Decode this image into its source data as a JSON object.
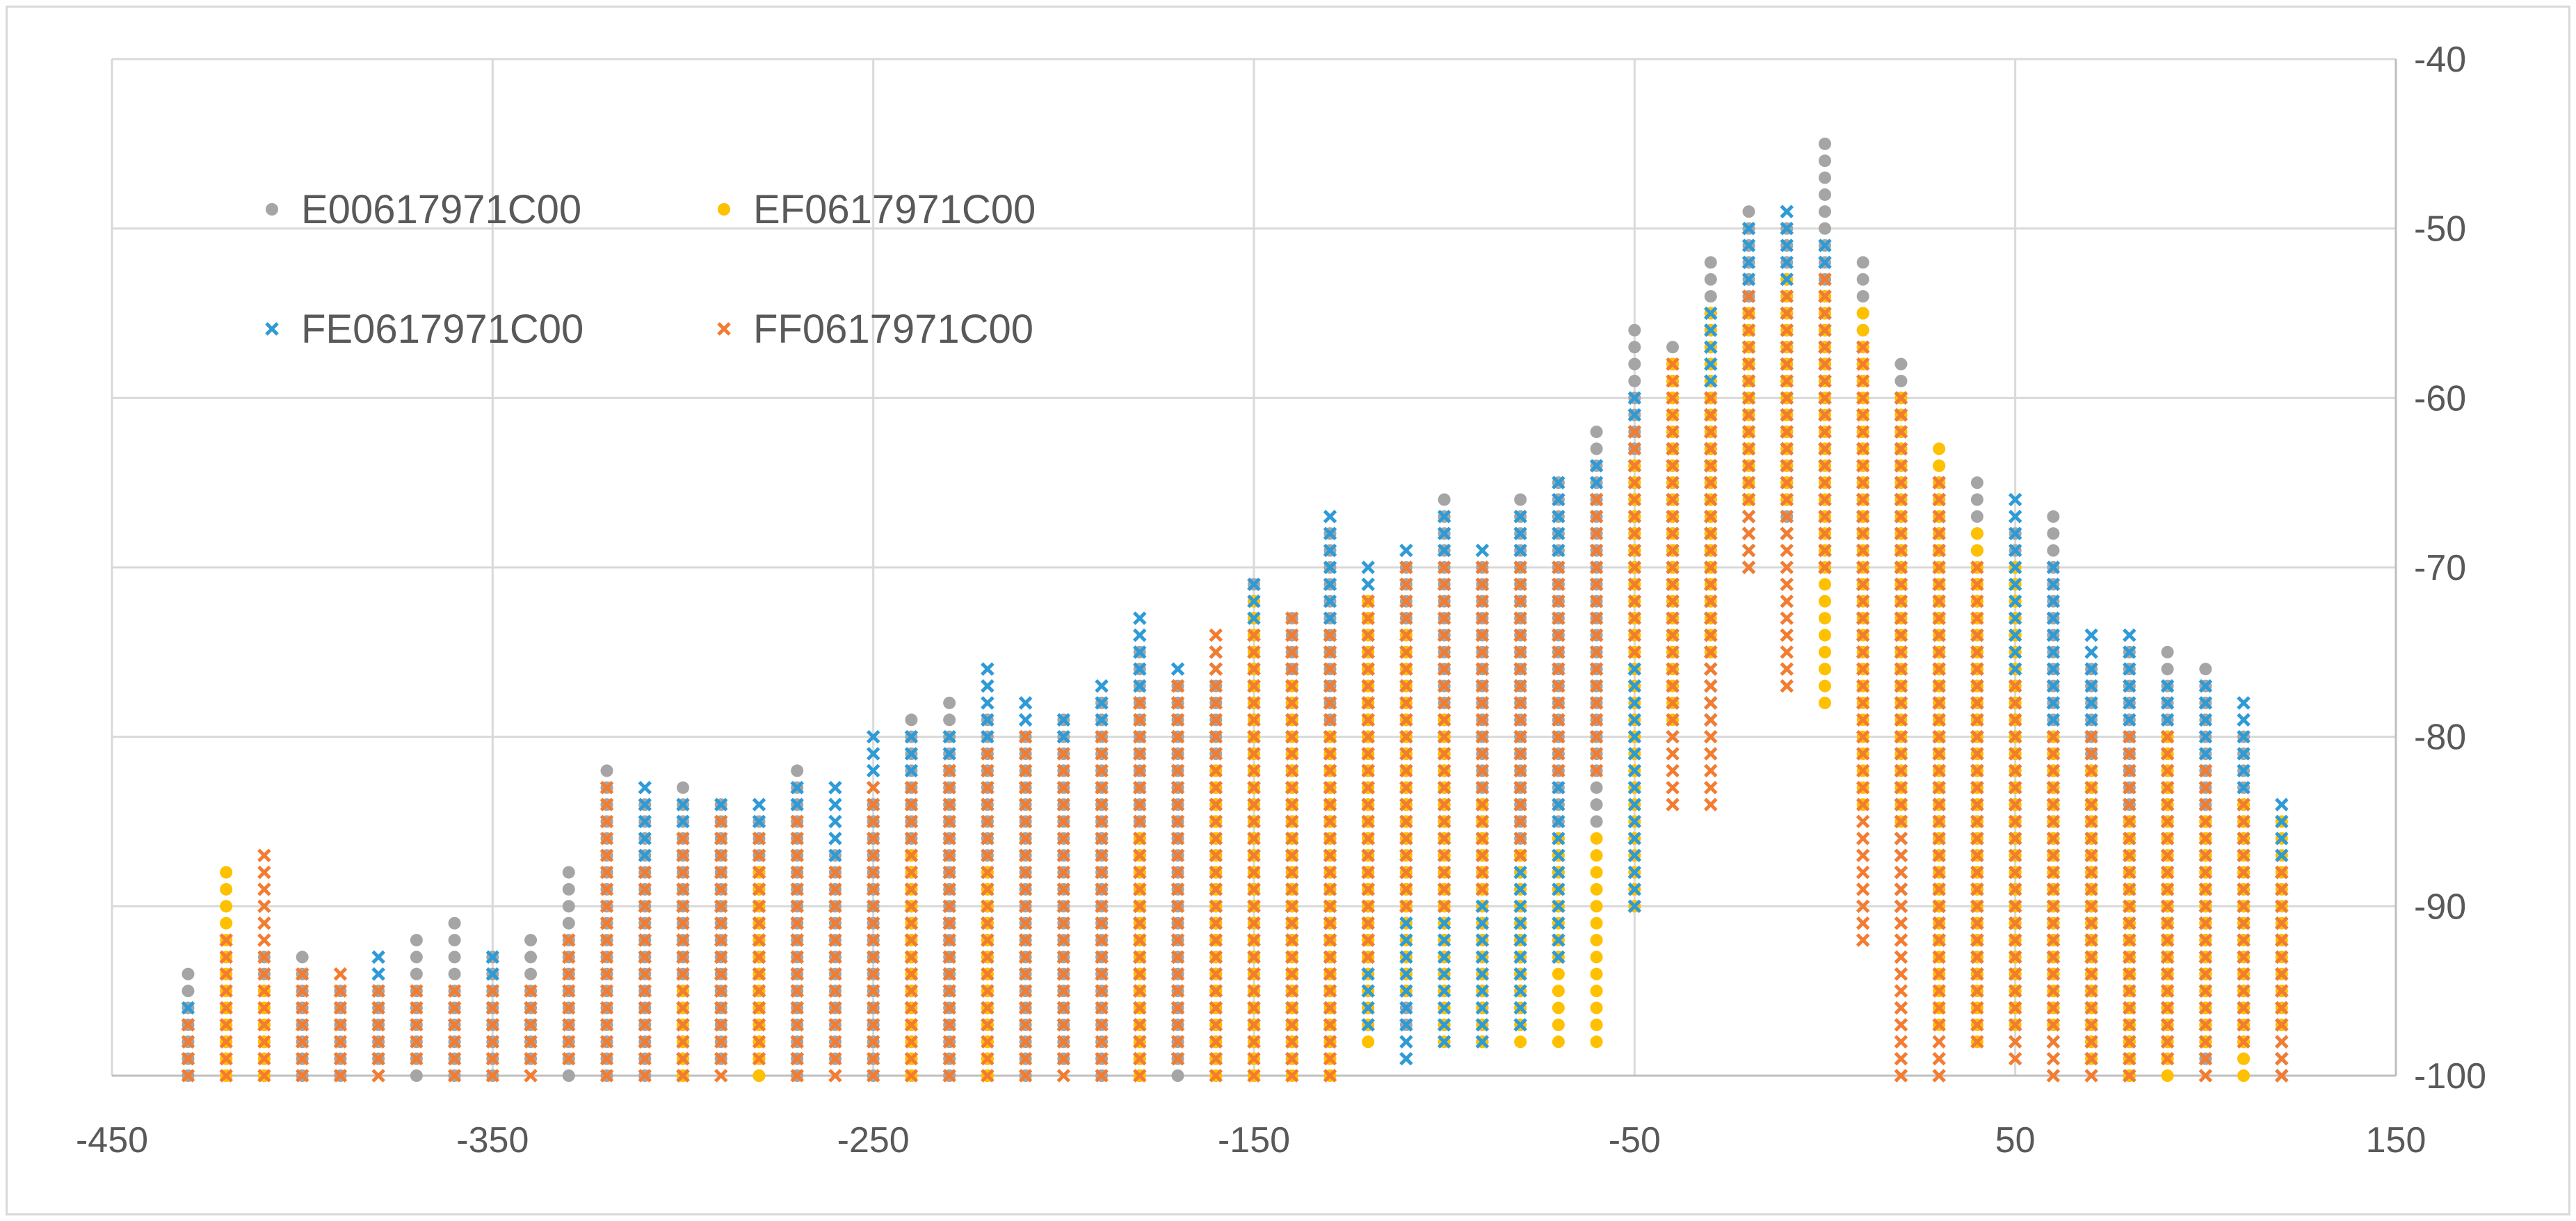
{
  "chart_data": {
    "type": "scatter",
    "title": "",
    "xlabel": "",
    "ylabel": "",
    "xlim": [
      -450,
      150
    ],
    "ylim": [
      -100,
      -40
    ],
    "x_ticks": [
      -450,
      -350,
      -250,
      -150,
      -50,
      50,
      150
    ],
    "x_tick_labels": [
      "-450",
      "-350",
      "-250",
      "-150",
      "-50",
      "50",
      "150"
    ],
    "y_ticks": [
      -40,
      -50,
      -60,
      -70,
      -80,
      -90,
      -100
    ],
    "y_tick_labels": [
      "-40",
      "-50",
      "-60",
      "-70",
      "-80",
      "-90",
      "-100"
    ],
    "y_axis_side": "right",
    "grid": true,
    "legend_position": "top-left",
    "x_positions": [
      -430,
      -420,
      -410,
      -400,
      -390,
      -380,
      -370,
      -360,
      -350,
      -340,
      -330,
      -320,
      -310,
      -300,
      -290,
      -280,
      -270,
      -260,
      -250,
      -240,
      -230,
      -220,
      -210,
      -200,
      -190,
      -180,
      -170,
      -160,
      -150,
      -140,
      -130,
      -120,
      -110,
      -100,
      -90,
      -80,
      -70,
      -60,
      -50,
      -40,
      -30,
      -20,
      -10,
      0,
      10,
      20,
      30,
      40,
      50,
      60,
      70,
      80,
      90,
      100,
      110,
      120
    ],
    "y_step": 1,
    "series": [
      {
        "name": "E00617971C00",
        "marker": "circle",
        "color": "#a5a5a5",
        "x_offset": 0,
        "ranges": [
          [
            -430,
            -94,
            -100
          ],
          [
            -420,
            -96,
            -100
          ],
          [
            -410,
            -93,
            -100
          ],
          [
            -400,
            -93,
            -100
          ],
          [
            -390,
            -95,
            -100
          ],
          [
            -380,
            -95,
            -99
          ],
          [
            -370,
            -92,
            -100
          ],
          [
            -360,
            -91,
            -100
          ],
          [
            -350,
            -93,
            -100
          ],
          [
            -340,
            -92,
            -99
          ],
          [
            -330,
            -88,
            -100
          ],
          [
            -320,
            -82,
            -100
          ],
          [
            -310,
            -84,
            -100
          ],
          [
            -300,
            -83,
            -100
          ],
          [
            -290,
            -84,
            -99
          ],
          [
            -280,
            -85,
            -100
          ],
          [
            -270,
            -82,
            -100
          ],
          [
            -260,
            -87,
            -99
          ],
          [
            -250,
            -84,
            -100
          ],
          [
            -240,
            -79,
            -100
          ],
          [
            -230,
            -78,
            -100
          ],
          [
            -220,
            -79,
            -100
          ],
          [
            -210,
            -80,
            -100
          ],
          [
            -200,
            -79,
            -99
          ],
          [
            -190,
            -78,
            -100
          ],
          [
            -180,
            -75,
            -100
          ],
          [
            -170,
            -77,
            -100
          ],
          [
            -160,
            -77,
            -99
          ],
          [
            -150,
            -71,
            -100
          ],
          [
            -140,
            -73,
            -99
          ],
          [
            -130,
            -68,
            -98
          ],
          [
            -120,
            -72,
            -96
          ],
          [
            -110,
            -70,
            -97
          ],
          [
            -100,
            -66,
            -97
          ],
          [
            -90,
            -70,
            -98
          ],
          [
            -80,
            -66,
            -96
          ],
          [
            -70,
            -65,
            -90
          ],
          [
            -60,
            -62,
            -85
          ],
          [
            -50,
            -56,
            -70
          ],
          [
            -40,
            -57,
            -75
          ],
          [
            -30,
            -52,
            -70
          ],
          [
            -20,
            -49,
            -60
          ],
          [
            -10,
            -50,
            -67
          ],
          [
            0,
            -45,
            -60
          ],
          [
            10,
            -52,
            -68
          ],
          [
            20,
            -58,
            -75
          ],
          [
            30,
            -64,
            -90
          ],
          [
            40,
            -65,
            -94
          ],
          [
            50,
            -68,
            -96
          ],
          [
            60,
            -67,
            -97
          ],
          [
            70,
            -76,
            -98
          ],
          [
            80,
            -75,
            -100
          ],
          [
            90,
            -75,
            -98
          ],
          [
            100,
            -76,
            -99
          ],
          [
            110,
            -80,
            -99
          ]
        ]
      },
      {
        "name": "EF0617971C00",
        "marker": "circle",
        "color": "#ffc000",
        "x_offset": 0,
        "ranges": [
          [
            -420,
            -88,
            -100
          ],
          [
            -410,
            -95,
            -100
          ],
          [
            -300,
            -95,
            -100
          ],
          [
            -280,
            -88,
            -100
          ],
          [
            -240,
            -87,
            -100
          ],
          [
            -220,
            -88,
            -100
          ],
          [
            -180,
            -86,
            -100
          ],
          [
            -160,
            -82,
            -100
          ],
          [
            -150,
            -72,
            -100
          ],
          [
            -140,
            -77,
            -100
          ],
          [
            -130,
            -80,
            -100
          ],
          [
            -120,
            -72,
            -98
          ],
          [
            -110,
            -74,
            -95
          ],
          [
            -100,
            -79,
            -98
          ],
          [
            -90,
            -84,
            -98
          ],
          [
            -80,
            -87,
            -98
          ],
          [
            -70,
            -86,
            -98
          ],
          [
            -60,
            -86,
            -98
          ],
          [
            -50,
            -64,
            -90
          ],
          [
            -40,
            -58,
            -79
          ],
          [
            -30,
            -55,
            -75
          ],
          [
            -20,
            -55,
            -66
          ],
          [
            -10,
            -53,
            -66
          ],
          [
            0,
            -54,
            -78
          ],
          [
            10,
            -55,
            -84
          ],
          [
            20,
            -60,
            -85
          ],
          [
            30,
            -63,
            -97
          ],
          [
            40,
            -68,
            -98
          ],
          [
            50,
            -70,
            -97
          ],
          [
            60,
            -80,
            -97
          ],
          [
            70,
            -82,
            -99
          ],
          [
            80,
            -85,
            -100
          ],
          [
            90,
            -80,
            -100
          ],
          [
            100,
            -85,
            -98
          ],
          [
            110,
            -84,
            -100
          ],
          [
            120,
            -85,
            -97
          ]
        ]
      },
      {
        "name": "FE0617971C00",
        "marker": "x",
        "color": "#2e9bd6",
        "x_offset": 0,
        "ranges": [
          [
            -430,
            -96,
            -99
          ],
          [
            -380,
            -93,
            -99
          ],
          [
            -360,
            -96,
            -99
          ],
          [
            -350,
            -93,
            -98
          ],
          [
            -340,
            -96,
            -98
          ],
          [
            -310,
            -83,
            -98
          ],
          [
            -300,
            -84,
            -100
          ],
          [
            -290,
            -84,
            -97
          ],
          [
            -280,
            -84,
            -96
          ],
          [
            -270,
            -83,
            -99
          ],
          [
            -260,
            -83,
            -96
          ],
          [
            -250,
            -80,
            -98
          ],
          [
            -240,
            -80,
            -96
          ],
          [
            -230,
            -80,
            -97
          ],
          [
            -220,
            -76,
            -97
          ],
          [
            -210,
            -78,
            -98
          ],
          [
            -200,
            -79,
            -99
          ],
          [
            -190,
            -77,
            -95
          ],
          [
            -180,
            -73,
            -99
          ],
          [
            -170,
            -76,
            -99
          ],
          [
            -160,
            -75,
            -99
          ],
          [
            -150,
            -71,
            -98
          ],
          [
            -140,
            -75,
            -99
          ],
          [
            -130,
            -67,
            -98
          ],
          [
            -120,
            -70,
            -97
          ],
          [
            -110,
            -69,
            -99
          ],
          [
            -100,
            -67,
            -98
          ],
          [
            -90,
            -69,
            -98
          ],
          [
            -80,
            -67,
            -97
          ],
          [
            -70,
            -65,
            -93
          ],
          [
            -60,
            -64,
            -80
          ],
          [
            -50,
            -60,
            -90
          ],
          [
            -40,
            -62,
            -80
          ],
          [
            -30,
            -55,
            -79
          ],
          [
            -20,
            -50,
            -70
          ],
          [
            -10,
            -49,
            -68
          ],
          [
            0,
            -51,
            -70
          ],
          [
            10,
            -65,
            -75
          ],
          [
            20,
            -60,
            -90
          ],
          [
            30,
            -65,
            -92
          ],
          [
            40,
            -74,
            -95
          ],
          [
            50,
            -66,
            -97
          ],
          [
            60,
            -70,
            -98
          ],
          [
            70,
            -74,
            -99
          ],
          [
            80,
            -74,
            -100
          ],
          [
            90,
            -77,
            -98
          ],
          [
            100,
            -77,
            -99
          ],
          [
            110,
            -78,
            -97
          ],
          [
            120,
            -84,
            -100
          ]
        ]
      },
      {
        "name": "FF0617971C00",
        "marker": "x",
        "color": "#f47c30",
        "x_offset": 0,
        "ranges": [
          [
            -430,
            -97,
            -100
          ],
          [
            -420,
            -92,
            -100
          ],
          [
            -410,
            -87,
            -100
          ],
          [
            -400,
            -94,
            -100
          ],
          [
            -390,
            -94,
            -100
          ],
          [
            -380,
            -95,
            -100
          ],
          [
            -370,
            -95,
            -99
          ],
          [
            -360,
            -95,
            -100
          ],
          [
            -350,
            -95,
            -100
          ],
          [
            -340,
            -95,
            -100
          ],
          [
            -330,
            -92,
            -99
          ],
          [
            -320,
            -83,
            -100
          ],
          [
            -310,
            -88,
            -100
          ],
          [
            -300,
            -86,
            -100
          ],
          [
            -290,
            -85,
            -100
          ],
          [
            -280,
            -86,
            -99
          ],
          [
            -270,
            -85,
            -100
          ],
          [
            -260,
            -88,
            -100
          ],
          [
            -250,
            -83,
            -100
          ],
          [
            -240,
            -83,
            -100
          ],
          [
            -230,
            -82,
            -100
          ],
          [
            -220,
            -81,
            -100
          ],
          [
            -210,
            -80,
            -100
          ],
          [
            -200,
            -81,
            -100
          ],
          [
            -190,
            -80,
            -100
          ],
          [
            -180,
            -78,
            -100
          ],
          [
            -170,
            -77,
            -99
          ],
          [
            -160,
            -74,
            -100
          ],
          [
            -150,
            -74,
            -100
          ],
          [
            -140,
            -73,
            -100
          ],
          [
            -130,
            -74,
            -100
          ],
          [
            -120,
            -72,
            -93
          ],
          [
            -110,
            -70,
            -90
          ],
          [
            -100,
            -70,
            -90
          ],
          [
            -90,
            -70,
            -89
          ],
          [
            -80,
            -70,
            -87
          ],
          [
            -70,
            -70,
            -82
          ],
          [
            -60,
            -66,
            -82
          ],
          [
            -50,
            -62,
            -75
          ],
          [
            -40,
            -58,
            -84
          ],
          [
            -30,
            -60,
            -84
          ],
          [
            -20,
            -54,
            -70
          ],
          [
            -10,
            -54,
            -77
          ],
          [
            0,
            -53,
            -70
          ],
          [
            10,
            -57,
            -92
          ],
          [
            20,
            -60,
            -100
          ],
          [
            30,
            -65,
            -100
          ],
          [
            40,
            -70,
            -98
          ],
          [
            50,
            -77,
            -99
          ],
          [
            60,
            -80,
            -100
          ],
          [
            70,
            -80,
            -100
          ],
          [
            80,
            -80,
            -100
          ],
          [
            90,
            -80,
            -99
          ],
          [
            100,
            -82,
            -100
          ],
          [
            110,
            -84,
            -98
          ],
          [
            120,
            -88,
            -100
          ]
        ]
      }
    ]
  }
}
